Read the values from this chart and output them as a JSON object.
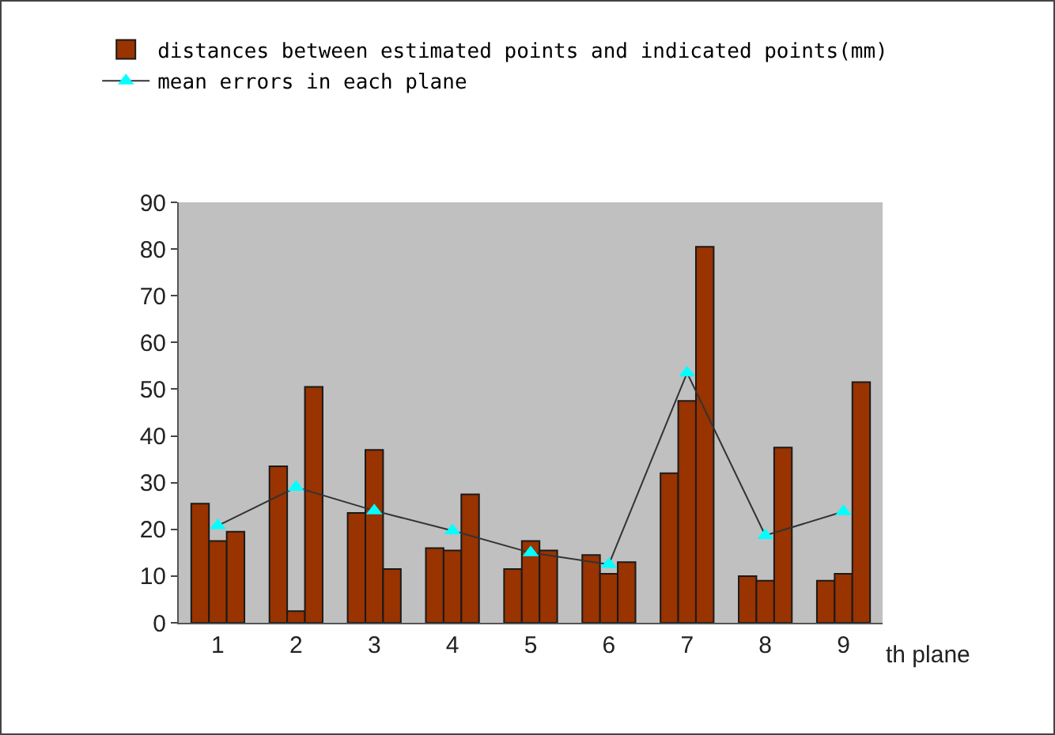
{
  "chart_data": {
    "type": "bar",
    "xlabel": "th plane",
    "categories": [
      "1",
      "2",
      "3",
      "4",
      "5",
      "6",
      "7",
      "8",
      "9"
    ],
    "series": [
      {
        "name": "distances between estimated points and indicated points(mm)",
        "color": "#993300",
        "values": [
          25.5,
          33.5,
          23.5,
          16,
          11.5,
          14.5,
          32,
          10,
          9
        ]
      },
      {
        "color": "#993300",
        "values": [
          17.5,
          2.5,
          37,
          15.5,
          17.5,
          10.5,
          47.5,
          9,
          10.5
        ]
      },
      {
        "color": "#993300",
        "values": [
          19.5,
          50.5,
          11.5,
          27.5,
          15.5,
          13,
          80.5,
          37.5,
          51.5
        ]
      },
      {
        "name": "mean errors in each plane",
        "type": "line",
        "color": "#00ffff",
        "values": [
          20.8,
          29,
          24,
          19.7,
          15,
          12.5,
          53.5,
          18.7,
          23.8
        ]
      }
    ],
    "ylim": [
      0,
      90
    ],
    "yticks": [
      0,
      10,
      20,
      30,
      40,
      50,
      60,
      70,
      80,
      90
    ],
    "grid": false,
    "legend": "top left",
    "marker": "triangle",
    "line_style": "solid"
  }
}
